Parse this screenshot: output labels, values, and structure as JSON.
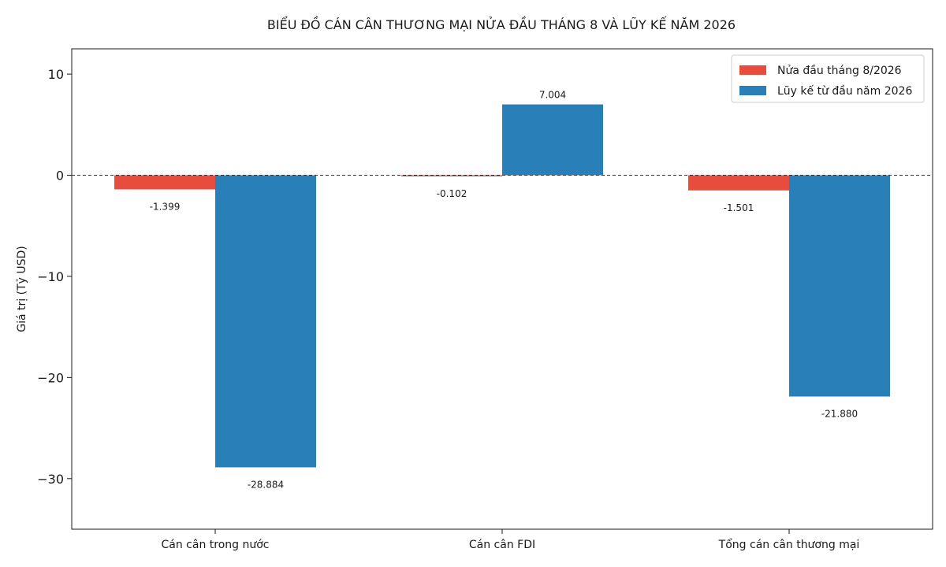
{
  "chart_data": {
    "type": "bar",
    "title": "BIỂU ĐỒ CÁN CÂN THƯƠNG MẠI NỬA ĐẦU THÁNG 8 VÀ LŨY KẾ NĂM 2026",
    "xlabel": "",
    "ylabel": "Giá trị (Tỷ USD)",
    "ylim": [
      -35,
      12.5
    ],
    "yticks": [
      10,
      0,
      -10,
      -20,
      -30
    ],
    "ytick_labels": [
      "10",
      "0",
      "−10",
      "−20",
      "−30"
    ],
    "categories": [
      "Cán cân trong nước",
      "Cán cân FDI",
      "Tổng cán cân thương mại"
    ],
    "series": [
      {
        "name": "Nửa đầu tháng 8/2026",
        "color": "#e74c3c",
        "values": [
          -1.399,
          -0.102,
          -1.501
        ],
        "labels": [
          "-1.399",
          "-0.102",
          "-1.501"
        ]
      },
      {
        "name": "Lũy kế từ đầu năm 2026",
        "color": "#2980b9",
        "values": [
          -28.884,
          7.004,
          -21.88
        ],
        "labels": [
          "-28.884",
          "7.004",
          "-21.880"
        ]
      }
    ],
    "zero_line": {
      "value": 0,
      "style": "dashed"
    },
    "grid": false,
    "legend_position": "top-right"
  }
}
